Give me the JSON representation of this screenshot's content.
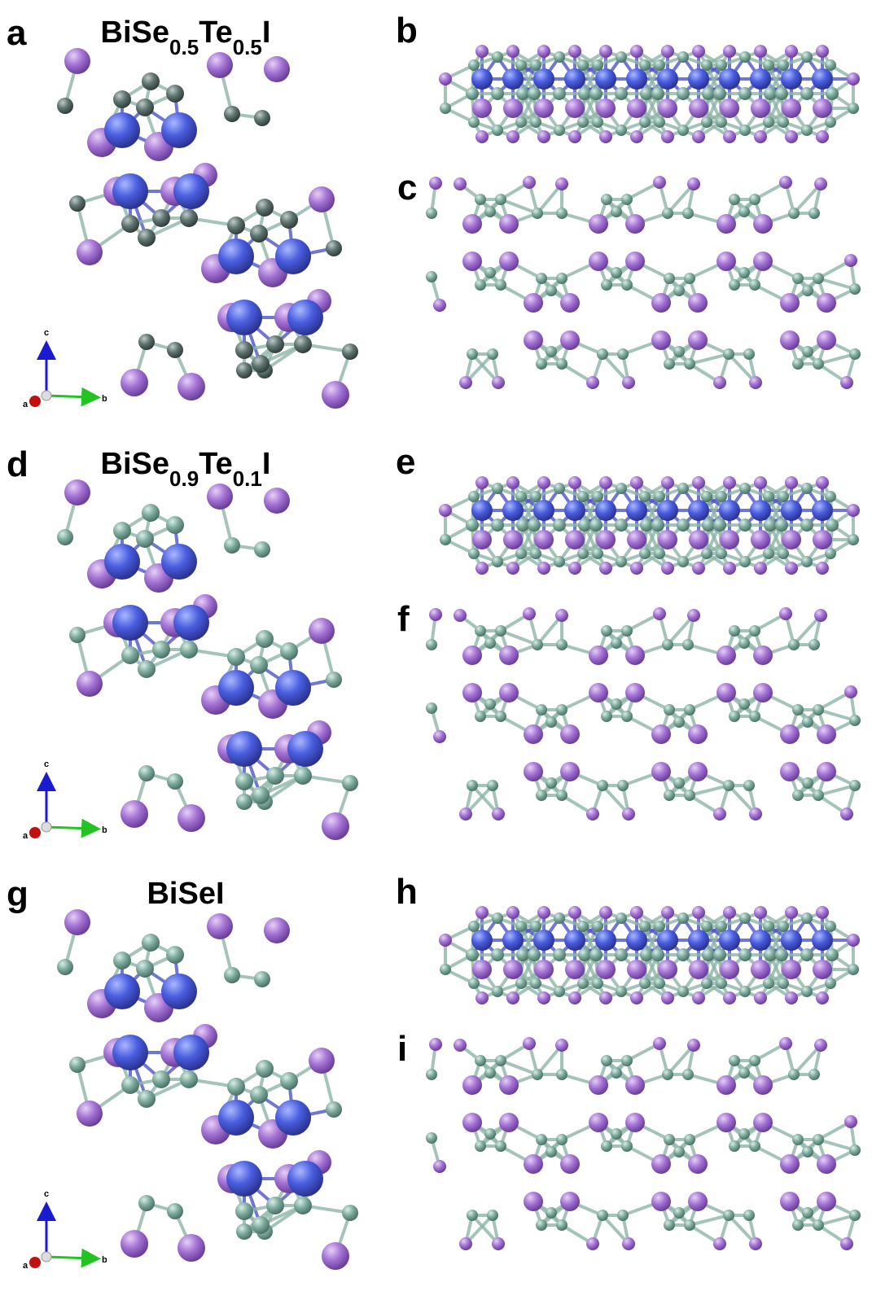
{
  "rows": [
    {
      "left": {
        "label": "a",
        "title": [
          {
            "text": "BiSe"
          },
          {
            "text": "0.5",
            "sub": true
          },
          {
            "text": "Te"
          },
          {
            "text": "0.5",
            "sub": true
          },
          {
            "text": "I"
          }
        ],
        "axes": [
          "c",
          "a",
          "b"
        ]
      },
      "top_right": {
        "label": "b"
      },
      "bottom_right": {
        "label": "c"
      }
    },
    {
      "left": {
        "label": "d",
        "title": [
          {
            "text": "BiSe"
          },
          {
            "text": "0.9",
            "sub": true
          },
          {
            "text": "Te"
          },
          {
            "text": "0.1",
            "sub": true
          },
          {
            "text": "I"
          }
        ],
        "axes": [
          "c",
          "a",
          "b"
        ]
      },
      "top_right": {
        "label": "e"
      },
      "bottom_right": {
        "label": "f"
      }
    },
    {
      "left": {
        "label": "g",
        "title": [
          {
            "text": "BiSeI"
          }
        ],
        "axes": [
          "c",
          "a",
          "b"
        ]
      },
      "top_right": {
        "label": "h"
      },
      "bottom_right": {
        "label": "i"
      }
    }
  ]
}
